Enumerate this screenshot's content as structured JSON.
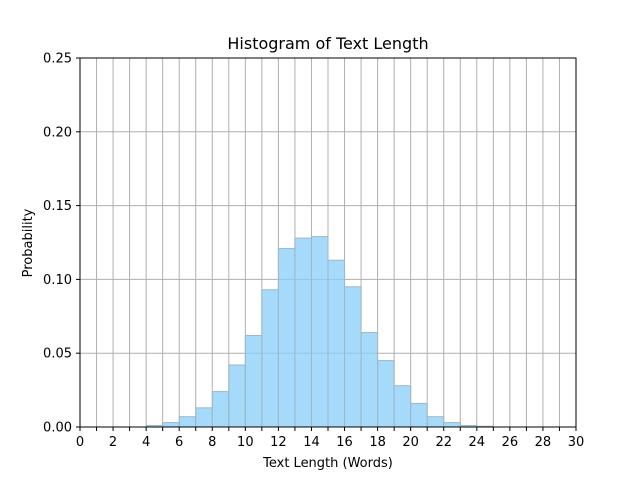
{
  "chart_data": {
    "type": "bar",
    "title": "Histogram of Text Length",
    "xlabel": "Text Length (Words)",
    "ylabel": "Probability",
    "xlim": [
      0,
      30
    ],
    "ylim": [
      0,
      0.25
    ],
    "grid": true,
    "x_ticks": [
      0,
      1,
      2,
      3,
      4,
      5,
      6,
      7,
      8,
      9,
      10,
      11,
      12,
      13,
      14,
      15,
      16,
      17,
      18,
      19,
      20,
      21,
      22,
      23,
      24,
      25,
      26,
      27,
      28,
      29,
      30
    ],
    "x_tick_labels": [
      "0",
      "",
      "2",
      "",
      "4",
      "",
      "6",
      "",
      "8",
      "",
      "10",
      "",
      "12",
      "",
      "14",
      "",
      "16",
      "",
      "18",
      "",
      "20",
      "",
      "22",
      "",
      "24",
      "",
      "26",
      "",
      "28",
      "",
      "30"
    ],
    "y_ticks": [
      0,
      0.05,
      0.1,
      0.15,
      0.2,
      0.25
    ],
    "y_tick_labels": [
      "0.00",
      "0.05",
      "0.10",
      "0.15",
      "0.20",
      "0.25"
    ],
    "bin_edges": [
      0,
      1,
      2,
      3,
      4,
      5,
      6,
      7,
      8,
      9,
      10,
      11,
      12,
      13,
      14,
      15,
      16,
      17,
      18,
      19,
      20,
      21,
      22,
      23,
      24,
      25,
      26,
      27,
      28,
      29,
      30
    ],
    "values": [
      0,
      0,
      0,
      0,
      0.001,
      0.003,
      0.007,
      0.013,
      0.024,
      0.042,
      0.062,
      0.093,
      0.121,
      0.128,
      0.129,
      0.113,
      0.095,
      0.064,
      0.045,
      0.028,
      0.016,
      0.007,
      0.003,
      0.001,
      0.0005,
      0,
      0,
      0,
      0,
      0
    ],
    "bar_color": "#87cefa",
    "bar_edge_color": "#9fb7c7",
    "grid_color": "#b0b0b0"
  }
}
